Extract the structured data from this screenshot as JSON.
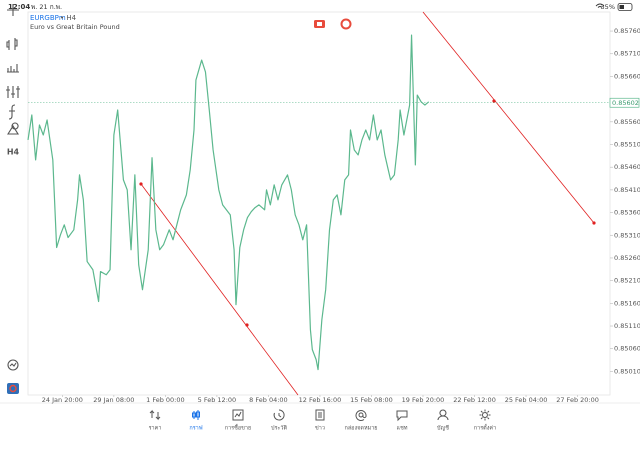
{
  "status_bar": {
    "time": "12:04",
    "date": "พ. 21 ก.พ.",
    "battery": "35%"
  },
  "header": {
    "symbol": "EURGBPm",
    "period": "• H4",
    "description": "Euro vs Great Britain Pound"
  },
  "toolbar": {
    "timeframe": "H4"
  },
  "current_price": {
    "value": 0.85602,
    "label": "0.85602"
  },
  "chart_data": {
    "type": "line",
    "color": "#5cb88e",
    "xlim": [
      0,
      305
    ],
    "ylim": [
      0.84958,
      0.85802
    ],
    "xticks": [
      {
        "value": 18,
        "label": "24 Jan 20:00"
      },
      {
        "value": 45,
        "label": "29 Jan 08:00"
      },
      {
        "value": 72,
        "label": "1 Feb 00:00"
      },
      {
        "value": 99,
        "label": "5 Feb 12:00"
      },
      {
        "value": 126,
        "label": "8 Feb 04:00"
      },
      {
        "value": 153,
        "label": "12 Feb 16:00"
      },
      {
        "value": 180,
        "label": "15 Feb 08:00"
      },
      {
        "value": 207,
        "label": "19 Feb 20:00"
      },
      {
        "value": 234,
        "label": "22 Feb 12:00"
      },
      {
        "value": 261,
        "label": "25 Feb 04:00"
      },
      {
        "value": 288,
        "label": "27 Feb 20:00"
      }
    ],
    "yticks": [
      {
        "value": 0.8576,
        "label": "0.85760"
      },
      {
        "value": 0.8571,
        "label": "0.85710"
      },
      {
        "value": 0.8566,
        "label": "0.85660"
      },
      {
        "value": 0.8556,
        "label": "0.85560"
      },
      {
        "value": 0.8551,
        "label": "0.85510"
      },
      {
        "value": 0.8546,
        "label": "0.85460"
      },
      {
        "value": 0.8541,
        "label": "0.85410"
      },
      {
        "value": 0.8536,
        "label": "0.85360"
      },
      {
        "value": 0.8531,
        "label": "0.85310"
      },
      {
        "value": 0.8526,
        "label": "0.85260"
      },
      {
        "value": 0.8521,
        "label": "0.85210"
      },
      {
        "value": 0.8516,
        "label": "0.85160"
      },
      {
        "value": 0.8511,
        "label": "0.85110"
      },
      {
        "value": 0.8506,
        "label": "0.85060"
      },
      {
        "value": 0.8501,
        "label": "0.85010"
      }
    ],
    "x": [
      0,
      2,
      4,
      6,
      8,
      10,
      13,
      15,
      17,
      19,
      21,
      24,
      26,
      27,
      29,
      31,
      34,
      37,
      38,
      41,
      43,
      45,
      47,
      50,
      52,
      54,
      56,
      58,
      60,
      63,
      65,
      67,
      69,
      71,
      74,
      76,
      78,
      80,
      83,
      85,
      87,
      88,
      91,
      93,
      95,
      97,
      100,
      102,
      104,
      106,
      108,
      109,
      111,
      113,
      115,
      117,
      119,
      121,
      124,
      125,
      127,
      129,
      131,
      133,
      136,
      138,
      140,
      142,
      144,
      146,
      148,
      149,
      151,
      152,
      154,
      156,
      158,
      160,
      162,
      164,
      166,
      168,
      169,
      171,
      173,
      175,
      177,
      179,
      181,
      183,
      185,
      187,
      190,
      192,
      194,
      195,
      197,
      200,
      201,
      203,
      204,
      206,
      208,
      210
    ],
    "values": [
      0.8552,
      0.85575,
      0.85476,
      0.85553,
      0.85531,
      0.85564,
      0.85476,
      0.85283,
      0.85311,
      0.85333,
      0.85305,
      0.85322,
      0.85388,
      0.85443,
      0.85388,
      0.85252,
      0.85234,
      0.85164,
      0.8523,
      0.85223,
      0.85234,
      0.85531,
      0.85586,
      0.85432,
      0.8541,
      0.85278,
      0.85443,
      0.85245,
      0.8519,
      0.85278,
      0.85481,
      0.85322,
      0.85278,
      0.85289,
      0.85322,
      0.853,
      0.85333,
      0.85366,
      0.85399,
      0.85454,
      0.85542,
      0.85652,
      0.85696,
      0.8567,
      0.85586,
      0.85498,
      0.8541,
      0.85377,
      0.85366,
      0.85355,
      0.85278,
      0.85157,
      0.85283,
      0.85322,
      0.85349,
      0.85362,
      0.85371,
      0.85377,
      0.85366,
      0.8541,
      0.85377,
      0.85421,
      0.85388,
      0.85421,
      0.85443,
      0.8541,
      0.85355,
      0.85333,
      0.853,
      0.85333,
      0.85102,
      0.85058,
      0.85036,
      0.85014,
      0.85124,
      0.8519,
      0.85322,
      0.85388,
      0.85399,
      0.85355,
      0.85432,
      0.85443,
      0.85542,
      0.85498,
      0.85487,
      0.8552,
      0.85542,
      0.8552,
      0.85575,
      0.8552,
      0.85542,
      0.85487,
      0.85432,
      0.85443,
      0.8552,
      0.85586,
      0.85531,
      0.85597,
      0.85751,
      0.85465,
      0.85619,
      0.85604,
      0.85597,
      0.85604
    ]
  },
  "bottom_nav": [
    "ราคา",
    "กราฟ",
    "การซื้อขาย",
    "ประวัติ",
    "ข่าว",
    "กล่องจดหมาย",
    "แชท",
    "บัญชี",
    "การตั้งค่า"
  ],
  "active_tab": 1
}
